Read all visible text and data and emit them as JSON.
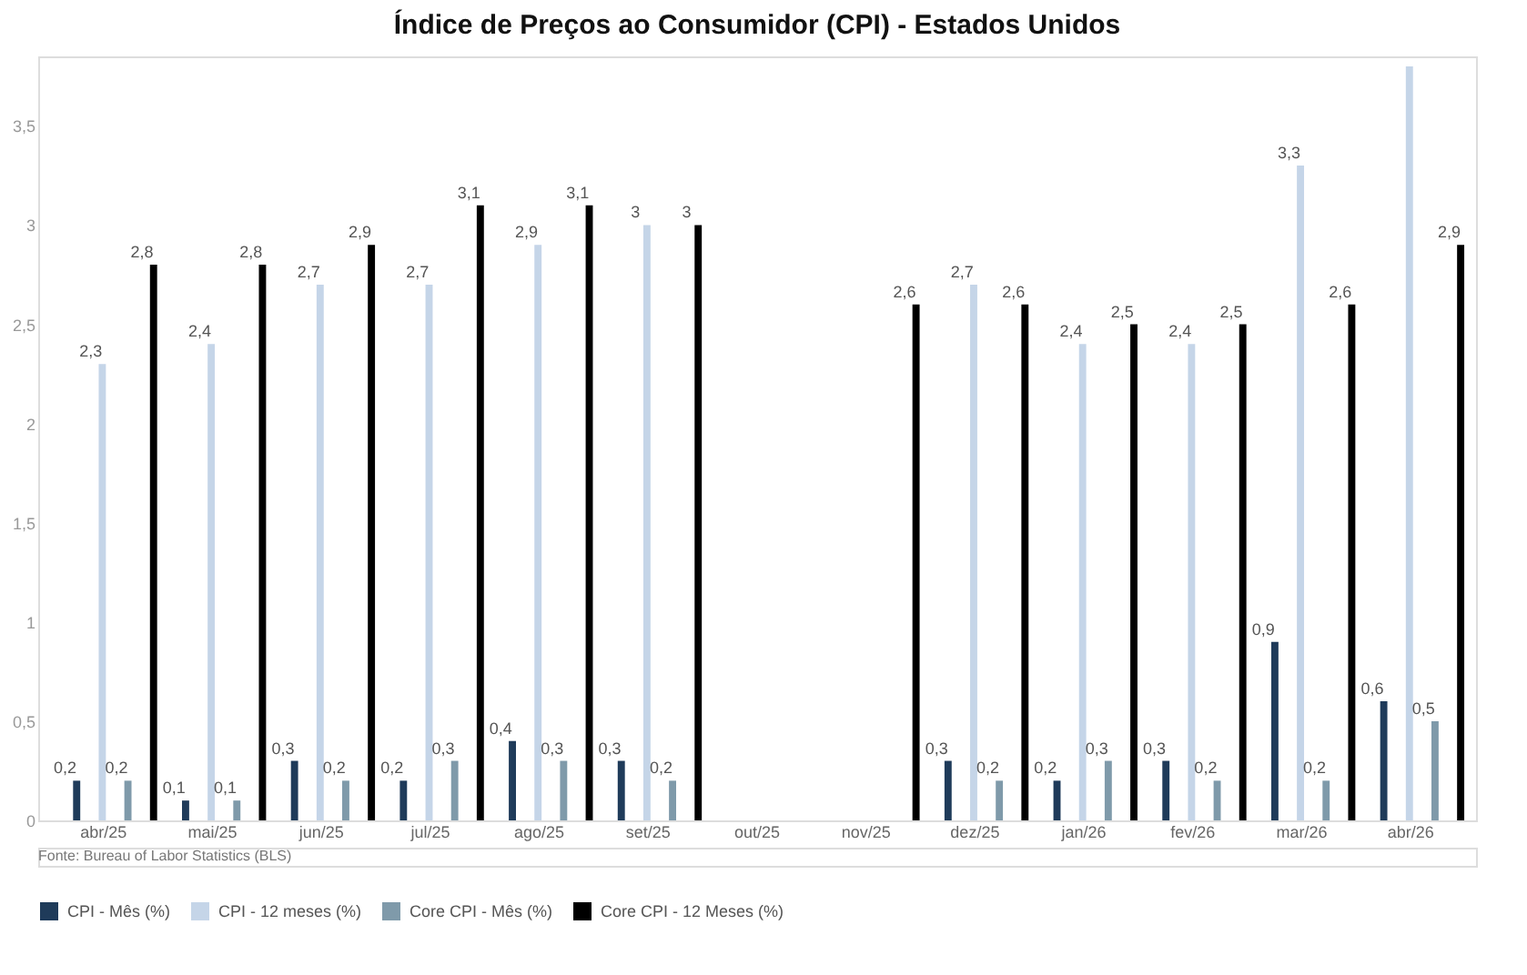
{
  "chart_data": {
    "type": "bar",
    "title": "Índice de Preços ao Consumidor (CPI) - Estados Unidos",
    "categories": [
      "abr/25",
      "mai/25",
      "jun/25",
      "jul/25",
      "ago/25",
      "set/25",
      "out/25",
      "nov/25",
      "dez/25",
      "jan/26",
      "fev/26",
      "mar/26",
      "abr/26"
    ],
    "series": [
      {
        "name": "CPI - Mês (%)",
        "color": "#1f3b5a",
        "values": [
          0.2,
          0.1,
          0.3,
          0.2,
          0.4,
          0.3,
          null,
          null,
          0.3,
          0.2,
          0.3,
          0.9,
          0.6
        ],
        "value_labels": [
          "0,2",
          "0,1",
          "0,3",
          "0,2",
          "0,4",
          "0,3",
          null,
          null,
          "0,3",
          "0,2",
          "0,3",
          "0,9",
          "0,6"
        ]
      },
      {
        "name": "CPI - 12 meses (%)",
        "color": "#c5d5e8",
        "values": [
          2.3,
          2.4,
          2.7,
          2.7,
          2.9,
          3,
          null,
          null,
          2.7,
          2.4,
          2.4,
          3.3,
          3.8
        ],
        "value_labels": [
          "2,3",
          "2,4",
          "2,7",
          "2,7",
          "2,9",
          "3",
          null,
          null,
          "2,7",
          "2,4",
          "2,4",
          "3,3",
          null
        ]
      },
      {
        "name": "Core CPI - Mês (%)",
        "color": "#7f9aaa",
        "values": [
          0.2,
          0.1,
          0.2,
          0.3,
          0.3,
          0.2,
          null,
          null,
          0.2,
          0.3,
          0.2,
          0.2,
          0.5
        ],
        "value_labels": [
          "0,2",
          "0,1",
          "0,2",
          "0,3",
          "0,3",
          "0,2",
          null,
          null,
          "0,2",
          "0,3",
          "0,2",
          "0,2",
          "0,5"
        ]
      },
      {
        "name": "Core CPI - 12 Meses (%)",
        "color": "#000000",
        "values": [
          2.8,
          2.8,
          2.9,
          3.1,
          3.1,
          3,
          null,
          2.6,
          2.6,
          2.5,
          2.5,
          2.6,
          2.9
        ],
        "value_labels": [
          "2,8",
          "2,8",
          "2,9",
          "3,1",
          "3,1",
          "3",
          null,
          "2,6",
          "2,6",
          "2,5",
          "2,5",
          "2,6",
          "2,9"
        ]
      }
    ],
    "ylim": [
      0,
      3.85
    ],
    "yticks": [
      0,
      {
        "value": 0.5,
        "label": "0,5"
      },
      1,
      {
        "value": 1.5,
        "label": "1,5"
      },
      2,
      {
        "value": 2.5,
        "label": "2,5"
      },
      3,
      {
        "value": 3.5,
        "label": "3,5"
      }
    ],
    "grid": false,
    "legend": "bottom",
    "annotations": [
      "Fonte: Bureau of Labor Statistics (BLS)"
    ]
  }
}
